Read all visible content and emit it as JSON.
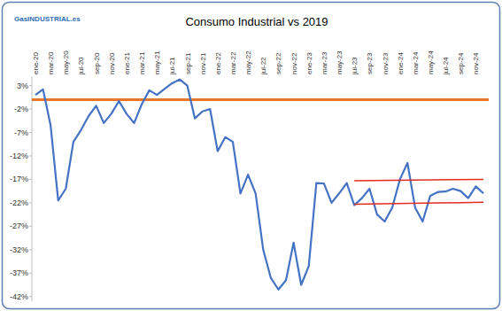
{
  "chart_data": {
    "type": "line",
    "title": "Consumo Industrial vs 2019",
    "logo": "GasINDUSTRIAL.es",
    "color": "#4472c4",
    "categories": [
      "ene-20",
      null,
      "mar-20",
      null,
      "may-20",
      null,
      "jul-20",
      null,
      "sep-20",
      null,
      "nov-20",
      null,
      "ene-21",
      null,
      "mar-21",
      null,
      "may-21",
      null,
      "jul-21",
      null,
      "sep-21",
      null,
      "nov-21",
      null,
      "ene-22",
      null,
      "mar-22",
      null,
      "may-22",
      null,
      "jul-22",
      null,
      "sep-22",
      null,
      "nov-22",
      null,
      "ene-23",
      null,
      "mar-23",
      null,
      "may-23",
      null,
      "jul-23",
      null,
      "sep-23",
      null,
      "nov-23",
      null,
      "ene-24",
      null,
      "mar-24",
      null,
      "may-24",
      null,
      "jul-24",
      null,
      "sep-24",
      null,
      "nov-24",
      null
    ],
    "values": [
      1,
      2.2,
      -5.5,
      -21.5,
      -19,
      -9,
      -6.5,
      -3.5,
      -1.3,
      -5,
      -3,
      -0.3,
      -3,
      -5,
      -1,
      2,
      1,
      2.3,
      3.5,
      4.3,
      3,
      -4,
      -2.5,
      -2,
      -11,
      -8,
      -9,
      -20,
      -16,
      -20,
      -32,
      -38,
      -40.5,
      -38.5,
      -30.5,
      -39.5,
      -35.5,
      -17.8,
      -17.9,
      -22,
      -20,
      -17.8,
      -22.5,
      -21,
      -19,
      -24.5,
      -26,
      -23,
      -17,
      -13.5,
      -23,
      -26,
      -20.5,
      -19.7,
      -19.6,
      -19,
      -19.5,
      -21,
      -18.5,
      -20
    ],
    "ylim": [
      -43,
      5
    ],
    "yticks": [
      {
        "value": 3,
        "label": "3%"
      },
      {
        "value": -2,
        "label": "-2%"
      },
      {
        "value": -7,
        "label": "-7%"
      },
      {
        "value": -12,
        "label": "-12%"
      },
      {
        "value": -17,
        "label": "-17%"
      },
      {
        "value": -22,
        "label": "-22%"
      },
      {
        "value": -27,
        "label": "-27%"
      },
      {
        "value": -32,
        "label": "-32%"
      },
      {
        "value": -37,
        "label": "-37%"
      },
      {
        "value": -42,
        "label": "-42%"
      }
    ],
    "grid": false,
    "reference_line": {
      "value": 0,
      "color": "#e8772e"
    },
    "annotation_lines": [
      {
        "from": 42,
        "to": 59,
        "values": [
          -17.3,
          -17.0
        ],
        "color": "#e32b22"
      },
      {
        "from": 42,
        "to": 59,
        "values": [
          -22.3,
          -21.9
        ],
        "color": "#e32b22"
      }
    ]
  }
}
